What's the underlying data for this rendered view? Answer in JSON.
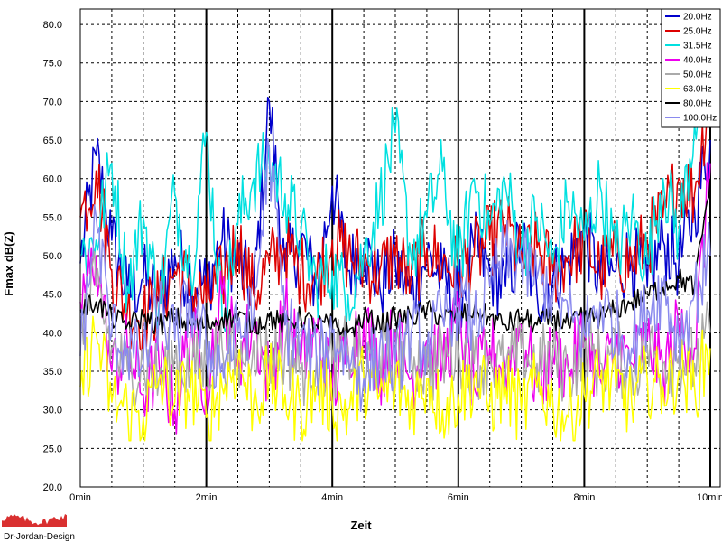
{
  "chart_data": {
    "type": "line",
    "xlabel": "Zeit",
    "ylabel": "Fmax dB(Z)",
    "x_unit": "min",
    "xlim": [
      0,
      10
    ],
    "ylim": [
      20,
      82
    ],
    "x_ticks": [
      "0min",
      "2min",
      "4min",
      "6min",
      "8min",
      "10min"
    ],
    "y_ticks": [
      "20.0",
      "25.0",
      "30.0",
      "35.0",
      "40.0",
      "45.0",
      "50.0",
      "55.0",
      "60.0",
      "65.0",
      "70.0",
      "75.0",
      "80.0"
    ],
    "grid": true,
    "legend_position": "top-right",
    "x": [
      0,
      0.25,
      0.5,
      0.75,
      1,
      1.25,
      1.5,
      1.75,
      2,
      2.25,
      2.5,
      2.75,
      3,
      3.25,
      3.5,
      3.75,
      4,
      4.25,
      4.5,
      4.75,
      5,
      5.25,
      5.5,
      5.75,
      6,
      6.25,
      6.5,
      6.75,
      7,
      7.25,
      7.5,
      7.75,
      8,
      8.25,
      8.5,
      8.75,
      9,
      9.25,
      9.5,
      9.75,
      10
    ],
    "series": [
      {
        "name": "20.0Hz",
        "color": "#0000cc",
        "values": [
          49,
          63,
          52,
          45,
          47,
          44,
          50,
          47,
          46,
          52,
          49,
          45,
          70,
          48,
          52,
          46,
          59,
          48,
          51,
          46,
          49,
          45,
          50,
          47,
          44,
          51,
          48,
          46,
          52,
          45,
          47,
          49,
          53,
          47,
          48,
          50,
          46,
          52,
          49,
          56,
          65
        ]
      },
      {
        "name": "25.0Hz",
        "color": "#dd0000",
        "values": [
          55,
          61,
          48,
          43,
          42,
          44,
          48,
          46,
          44,
          47,
          52,
          45,
          49,
          51,
          48,
          47,
          52,
          50,
          49,
          48,
          50,
          47,
          51,
          49,
          48,
          50,
          52,
          54,
          49,
          51,
          48,
          50,
          52,
          48,
          50,
          49,
          52,
          55,
          60,
          58,
          72
        ]
      },
      {
        "name": "31.5Hz",
        "color": "#00e0e0",
        "values": [
          50,
          52,
          62,
          46,
          55,
          44,
          58,
          48,
          66,
          42,
          54,
          60,
          62,
          58,
          53,
          46,
          48,
          45,
          50,
          57,
          66,
          50,
          55,
          61,
          48,
          60,
          54,
          59,
          51,
          55,
          49,
          57,
          52,
          59,
          50,
          55,
          49,
          60,
          53,
          67,
          76
        ]
      },
      {
        "name": "40.0Hz",
        "color": "#ee00ee",
        "values": [
          44,
          50,
          35,
          38,
          32,
          36,
          30,
          41,
          33,
          45,
          37,
          41,
          34,
          43,
          36,
          40,
          33,
          38,
          42,
          35,
          40,
          34,
          39,
          36,
          42,
          33,
          38,
          35,
          41,
          33,
          37,
          35,
          40,
          34,
          38,
          36,
          39,
          35,
          41,
          38,
          62
        ]
      },
      {
        "name": "50.0Hz",
        "color": "#aaaaaa",
        "values": [
          42,
          46,
          38,
          35,
          36,
          34,
          37,
          35,
          36,
          38,
          36,
          39,
          37,
          38,
          35,
          37,
          36,
          38,
          35,
          37,
          36,
          38,
          35,
          37,
          38,
          36,
          37,
          35,
          38,
          36,
          37,
          35,
          38,
          36,
          37,
          35,
          38,
          36,
          37,
          36,
          40
        ]
      },
      {
        "name": "63.0Hz",
        "color": "#ffff00",
        "values": [
          33,
          40,
          31,
          30,
          29,
          34,
          31,
          33,
          29,
          33,
          36,
          31,
          34,
          32,
          30,
          33,
          31,
          30,
          34,
          32,
          33,
          31,
          34,
          30,
          32,
          34,
          31,
          33,
          30,
          33,
          31,
          29,
          32,
          34,
          33,
          31,
          34,
          33,
          35,
          33,
          38
        ]
      },
      {
        "name": "80.0Hz",
        "color": "#000000",
        "values": [
          43,
          44,
          42,
          41,
          42,
          41,
          42,
          41,
          41,
          42,
          42,
          41,
          42,
          41,
          42,
          41,
          41,
          40,
          42,
          41,
          42,
          42,
          43,
          42,
          42,
          43,
          42,
          41,
          42,
          41,
          42,
          41,
          42,
          42,
          43,
          44,
          45,
          46,
          47,
          46,
          60
        ]
      },
      {
        "name": "100.0Hz",
        "color": "#8a8aee",
        "values": [
          37,
          55,
          40,
          38,
          36,
          43,
          39,
          44,
          38,
          36,
          40,
          42,
          64,
          41,
          39,
          36,
          40,
          37,
          34,
          38,
          36,
          40,
          38,
          42,
          44,
          41,
          46,
          50,
          49,
          47,
          45,
          42,
          40,
          44,
          41,
          38,
          43,
          46,
          39,
          45,
          50
        ]
      }
    ]
  },
  "logo": {
    "text": "Dr-Jordan-Design"
  }
}
